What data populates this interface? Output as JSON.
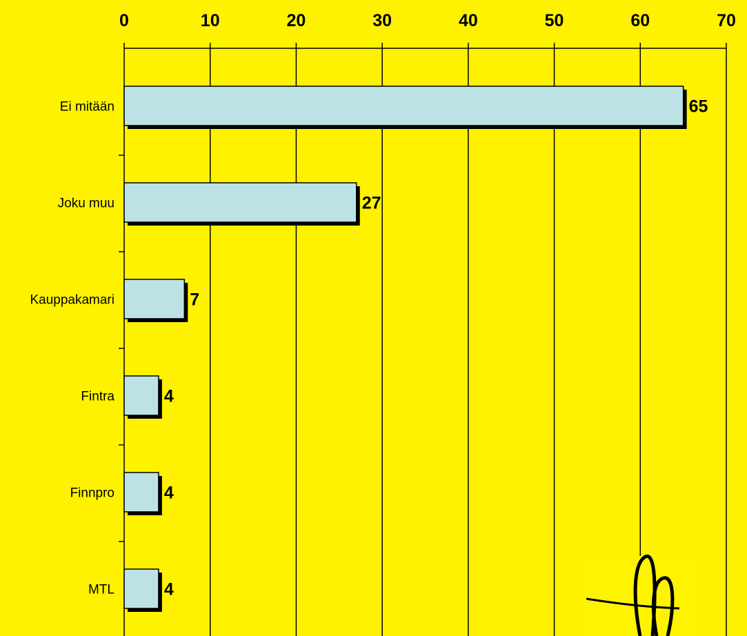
{
  "chart_data": {
    "type": "bar",
    "orientation": "horizontal",
    "categories": [
      "Ei mitään",
      "Joku muu",
      "Kauppakamari",
      "Fintra",
      "Finnpro",
      "MTL"
    ],
    "values": [
      65,
      27,
      7,
      4,
      4,
      4
    ],
    "title": "",
    "xlabel": "",
    "ylabel": "",
    "xlim": [
      0,
      70
    ],
    "x_ticks": [
      0,
      10,
      20,
      30,
      40,
      50,
      60,
      70
    ],
    "x_axis_position": "top",
    "grid": "vertical",
    "legend": "none",
    "data_labels": true
  },
  "colors": {
    "background": "#FFF200",
    "bar_fill": "#BDE2E6",
    "bar_shadow": "#000000",
    "gridline": "#000000"
  },
  "logo": {
    "icon": "signature-logo-icon"
  }
}
